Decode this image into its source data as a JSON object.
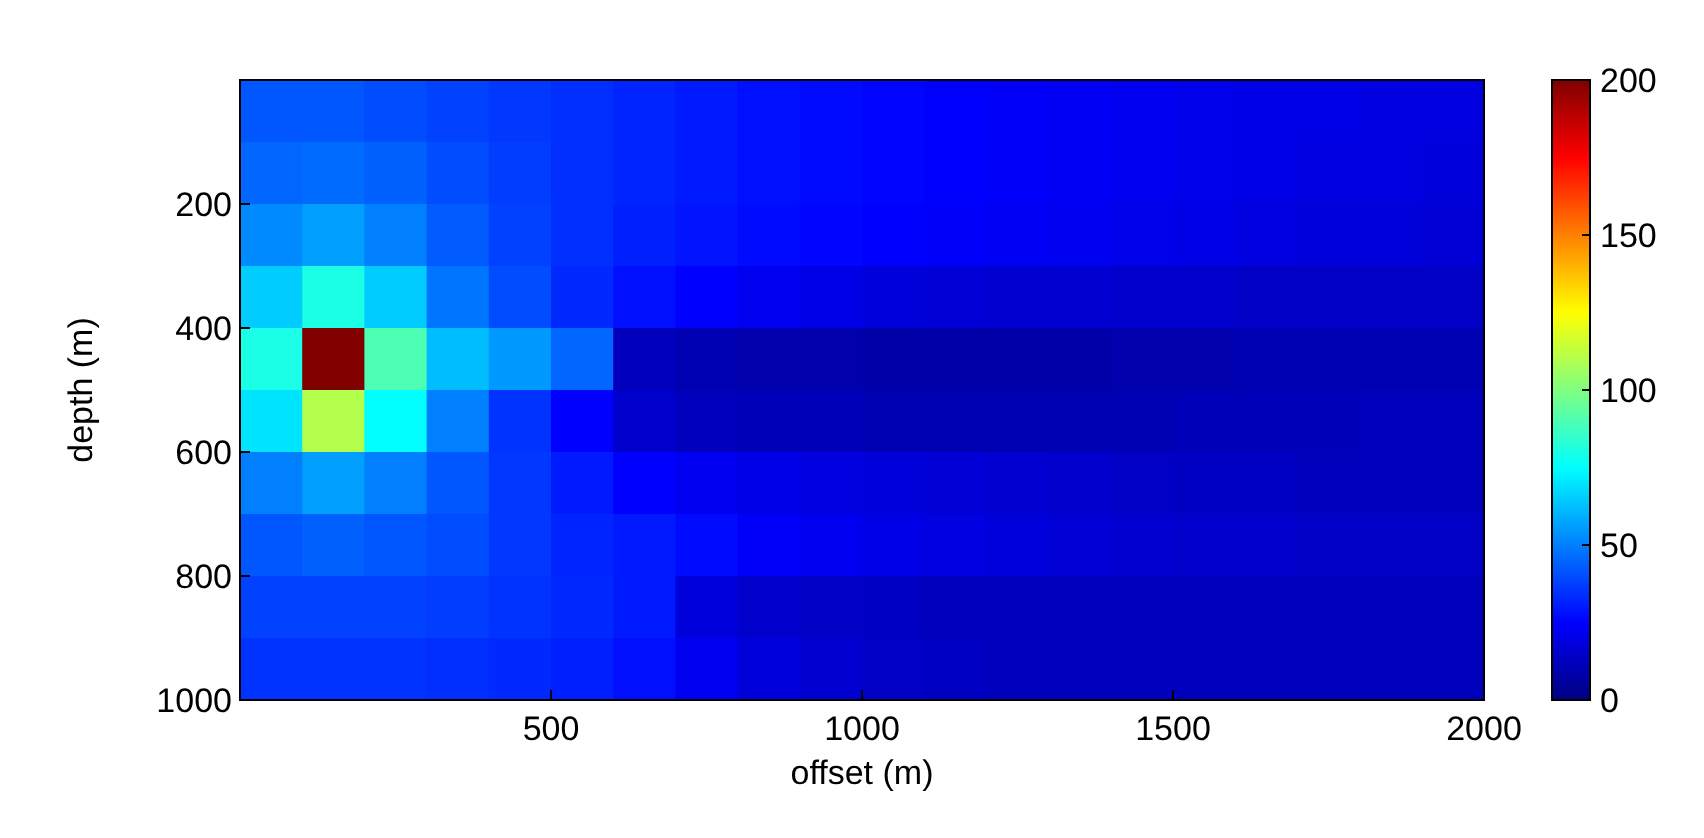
{
  "chart_data": {
    "type": "heatmap",
    "xlabel": "offset (m)",
    "ylabel": "depth (m)",
    "xlim": [
      0,
      2000
    ],
    "xticks": [
      500,
      1000,
      1500,
      2000
    ],
    "ylim": [
      1000,
      0
    ],
    "yticks": [
      200,
      400,
      600,
      800,
      1000
    ],
    "clim": [
      0,
      200
    ],
    "cticks": [
      0,
      50,
      100,
      150,
      200
    ],
    "cells": [
      [
        42,
        42,
        40,
        38,
        36,
        34,
        32,
        30,
        28,
        27,
        26,
        25,
        24,
        23,
        22,
        21,
        20,
        20,
        19,
        19
      ],
      [
        45,
        46,
        44,
        40,
        37,
        34,
        32,
        30,
        28,
        27,
        26,
        25,
        24,
        23,
        22,
        21,
        20,
        19,
        19,
        18
      ],
      [
        52,
        56,
        50,
        43,
        38,
        34,
        31,
        29,
        27,
        26,
        25,
        24,
        23,
        22,
        21,
        20,
        19,
        18,
        18,
        17
      ],
      [
        65,
        80,
        65,
        48,
        40,
        33,
        28,
        25,
        22,
        20,
        18,
        17,
        16,
        16,
        15,
        15,
        14,
        14,
        14,
        14
      ],
      [
        80,
        200,
        90,
        62,
        55,
        45,
        12,
        10,
        9,
        9,
        8,
        8,
        8,
        8,
        9,
        9,
        10,
        10,
        10,
        10
      ],
      [
        70,
        110,
        75,
        50,
        35,
        25,
        15,
        12,
        11,
        11,
        10,
        10,
        10,
        10,
        10,
        11,
        11,
        11,
        12,
        12
      ],
      [
        50,
        56,
        50,
        42,
        36,
        30,
        25,
        22,
        20,
        19,
        18,
        17,
        16,
        15,
        14,
        13,
        13,
        12,
        12,
        12
      ],
      [
        42,
        44,
        42,
        40,
        36,
        32,
        30,
        27,
        24,
        22,
        20,
        19,
        18,
        17,
        16,
        15,
        15,
        14,
        14,
        14
      ],
      [
        38,
        38,
        38,
        37,
        35,
        33,
        30,
        18,
        15,
        14,
        13,
        12,
        12,
        12,
        12,
        12,
        12,
        12,
        12,
        12
      ],
      [
        35,
        35,
        35,
        34,
        33,
        31,
        28,
        22,
        18,
        16,
        14,
        13,
        12,
        12,
        12,
        12,
        12,
        12,
        12,
        12
      ]
    ]
  }
}
